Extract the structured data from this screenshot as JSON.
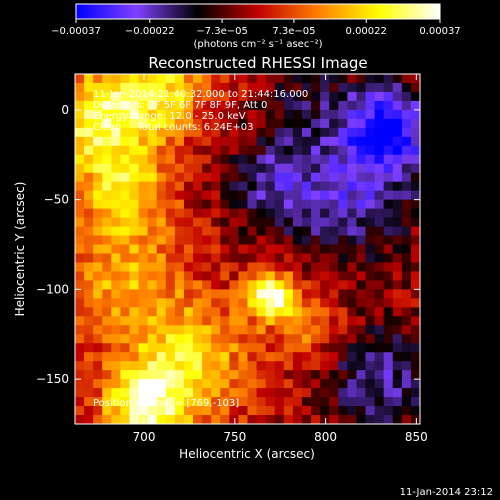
{
  "chart_data": {
    "type": "heatmap",
    "title": "Reconstructed RHESSI Image",
    "xlabel": "Heliocentric X (arcsec)",
    "ylabel": "Heliocentric Y (arcsec)",
    "xlim": [
      662,
      852
    ],
    "ylim": [
      -175,
      20
    ],
    "xticks": [
      {
        "value": 700,
        "label": "700"
      },
      {
        "value": 750,
        "label": "750"
      },
      {
        "value": 800,
        "label": "800"
      },
      {
        "value": 850,
        "label": "850"
      }
    ],
    "yticks": [
      {
        "value": 0,
        "label": "0"
      },
      {
        "value": -50,
        "label": "−50"
      },
      {
        "value": -100,
        "label": "−100"
      },
      {
        "value": -150,
        "label": "−150"
      }
    ],
    "colorbar": {
      "range": [
        -0.00037,
        0.00037
      ],
      "ticks": [
        {
          "value": -0.00037,
          "label": "−0.00037"
        },
        {
          "value": -0.00022,
          "label": "−0.00022"
        },
        {
          "value": -7.3e-05,
          "label": "−7.3e−05"
        },
        {
          "value": 7.3e-05,
          "label": "7.3e−05"
        },
        {
          "value": 0.00022,
          "label": "0.00022"
        },
        {
          "value": 0.00037,
          "label": "0.00037"
        }
      ],
      "units_label": "(photons cm⁻² s⁻¹ asec⁻²)",
      "colormap": [
        "#0000ff",
        "#8040ff",
        "#000000",
        "#c00000",
        "#ff8000",
        "#ffff00",
        "#ffffff"
      ]
    },
    "annotations": [
      "11-Jan-2014 21:40:32.000 to 21:44:16.000",
      "Detectors: 3F 5F 6F 7F 8F 9F, Att 0",
      "Energy Range: 12.0 - 25.0 keV",
      "Clean     Total counts: 6.24E+03"
    ],
    "peak_label": "Position of Peak = [769,-103]",
    "peak": {
      "x": 769,
      "y": -103
    },
    "sources": [
      {
        "x": 769,
        "y": -103,
        "width": 9,
        "amplitude": 1.0
      },
      {
        "x": 675,
        "y": -5,
        "width": 20,
        "amplitude": 0.75
      },
      {
        "x": 710,
        "y": 10,
        "width": 16,
        "amplitude": 0.6
      },
      {
        "x": 690,
        "y": -45,
        "width": 18,
        "amplitude": 0.55
      },
      {
        "x": 700,
        "y": -165,
        "width": 16,
        "amplitude": 0.8
      },
      {
        "x": 725,
        "y": -140,
        "width": 22,
        "amplitude": 0.6
      },
      {
        "x": 690,
        "y": -95,
        "width": 22,
        "amplitude": 0.45
      },
      {
        "x": 790,
        "y": -120,
        "width": 14,
        "amplitude": 0.35
      },
      {
        "x": 835,
        "y": -10,
        "width": 18,
        "amplitude": -0.95
      },
      {
        "x": 815,
        "y": -50,
        "width": 26,
        "amplitude": -0.55
      },
      {
        "x": 830,
        "y": -150,
        "width": 22,
        "amplitude": -0.55
      },
      {
        "x": 770,
        "y": -40,
        "width": 20,
        "amplitude": -0.45
      },
      {
        "x": 790,
        "y": 5,
        "width": 18,
        "amplitude": -0.3
      }
    ]
  },
  "footer_timestamp": "11-Jan-2014 23:12"
}
